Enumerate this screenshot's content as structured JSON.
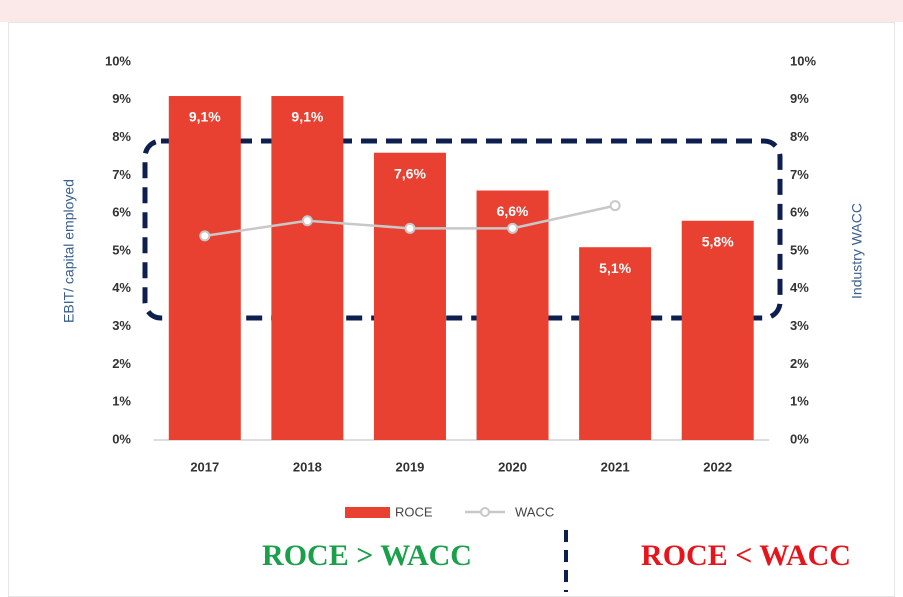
{
  "chart_data": {
    "type": "bar",
    "categories": [
      "2017",
      "2018",
      "2019",
      "2020",
      "2021",
      "2022"
    ],
    "series": [
      {
        "name": "ROCE",
        "type": "bar",
        "color": "#e84132",
        "values": [
          9.1,
          9.1,
          7.6,
          6.6,
          5.1,
          5.8
        ],
        "value_labels": [
          "9,1%",
          "9,1%",
          "7,6%",
          "6,6%",
          "5,1%",
          "5,8%"
        ]
      },
      {
        "name": "WACC",
        "type": "line",
        "axis": "y2",
        "color": "#c8c8c8",
        "values": [
          5.4,
          5.8,
          5.6,
          5.6,
          6.2,
          null
        ]
      }
    ],
    "y_label": "EBIT/ capital employed",
    "y2_label": "Industry WACC",
    "ylim": [
      0,
      10
    ],
    "yticks": [
      {
        "value": 0,
        "label": "0%"
      },
      {
        "value": 1,
        "label": "1%"
      },
      {
        "value": 2,
        "label": "2%"
      },
      {
        "value": 3,
        "label": "3%"
      },
      {
        "value": 4,
        "label": "4%"
      },
      {
        "value": 5,
        "label": "5%"
      },
      {
        "value": 6,
        "label": "6%"
      },
      {
        "value": 7,
        "label": "7%"
      },
      {
        "value": 8,
        "label": "8%"
      },
      {
        "value": 9,
        "label": "9%"
      },
      {
        "value": 10,
        "label": "10%"
      }
    ],
    "y2lim": [
      0,
      10
    ],
    "y2ticks": [
      {
        "value": 0,
        "label": "0%"
      },
      {
        "value": 1,
        "label": "1%"
      },
      {
        "value": 2,
        "label": "2%"
      },
      {
        "value": 3,
        "label": "3%"
      },
      {
        "value": 4,
        "label": "4%"
      },
      {
        "value": 5,
        "label": "5%"
      },
      {
        "value": 6,
        "label": "6%"
      },
      {
        "value": 7,
        "label": "7%"
      },
      {
        "value": 8,
        "label": "8%"
      },
      {
        "value": 9,
        "label": "9%"
      },
      {
        "value": 10,
        "label": "10%"
      }
    ],
    "annotations": [
      "ROCE > WACC",
      "ROCE < WACC"
    ]
  }
}
